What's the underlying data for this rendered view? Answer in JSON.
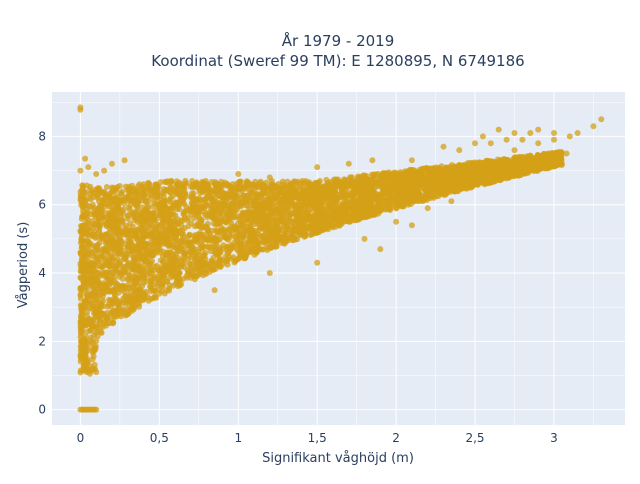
{
  "chart_data": {
    "type": "scatter",
    "title": "År 1979 - 2019",
    "subtitle": "Koordinat (Sweref 99 TM): E 1280895, N 6749186",
    "xlabel": "Signifikant våghöjd (m)",
    "ylabel": "Vågperiod (s)",
    "xlim": [
      -0.18,
      3.45
    ],
    "ylim": [
      -0.45,
      9.3
    ],
    "x_ticks": [
      0,
      0.5,
      1,
      1.5,
      2,
      2.5,
      3
    ],
    "x_tick_labels": [
      "0",
      "0,5",
      "1",
      "1,5",
      "2",
      "2,5",
      "3"
    ],
    "y_ticks": [
      0,
      2,
      4,
      6,
      8
    ],
    "y_tick_labels": [
      "0",
      "2",
      "4",
      "6",
      "8"
    ],
    "grid": true,
    "legend": "none",
    "colors": {
      "marker": "#D4A017",
      "plot_background": "#E5ECF6",
      "grid": "#ffffff",
      "text": "#2a3f5f"
    },
    "series": [
      {
        "points": [
          [
            0.0,
            8.85
          ],
          [
            0.0,
            8.78
          ],
          [
            0.0,
            0.0
          ],
          [
            0.01,
            0.0
          ],
          [
            0.02,
            0.0
          ],
          [
            0.03,
            0.0
          ],
          [
            0.04,
            0.0
          ],
          [
            0.05,
            0.0
          ],
          [
            0.06,
            0.0
          ],
          [
            0.07,
            0.0
          ],
          [
            0.08,
            0.0
          ],
          [
            0.09,
            0.0
          ],
          [
            0.1,
            0.0
          ],
          [
            0.0,
            1.6
          ],
          [
            0.02,
            1.3
          ],
          [
            0.04,
            1.1
          ],
          [
            0.06,
            1.05
          ],
          [
            0.1,
            1.1
          ],
          [
            0.03,
            7.35
          ],
          [
            0.05,
            7.1
          ],
          [
            0.15,
            7.0
          ],
          [
            0.2,
            7.2
          ],
          [
            0.28,
            7.3
          ],
          [
            0.0,
            7.0
          ],
          [
            0.1,
            6.9
          ],
          [
            0.4,
            6.6
          ],
          [
            0.6,
            6.5
          ],
          [
            0.8,
            6.6
          ],
          [
            1.0,
            6.9
          ],
          [
            1.2,
            6.8
          ],
          [
            1.5,
            7.1
          ],
          [
            1.7,
            7.2
          ],
          [
            1.85,
            7.3
          ],
          [
            2.1,
            7.3
          ],
          [
            2.3,
            7.7
          ],
          [
            2.4,
            7.6
          ],
          [
            2.5,
            7.8
          ],
          [
            2.6,
            7.8
          ],
          [
            2.7,
            7.9
          ],
          [
            2.8,
            7.9
          ],
          [
            2.85,
            8.1
          ],
          [
            2.9,
            7.8
          ],
          [
            3.0,
            7.9
          ],
          [
            3.1,
            8.0
          ],
          [
            3.15,
            8.1
          ],
          [
            2.55,
            8.0
          ],
          [
            2.65,
            8.2
          ],
          [
            2.75,
            8.1
          ],
          [
            2.9,
            8.2
          ],
          [
            3.0,
            8.1
          ],
          [
            3.25,
            8.3
          ],
          [
            3.3,
            8.5
          ],
          [
            2.88,
            7.1
          ],
          [
            3.08,
            7.5
          ],
          [
            2.5,
            7.2
          ],
          [
            2.75,
            7.6
          ],
          [
            0.85,
            3.5
          ],
          [
            1.2,
            4.0
          ],
          [
            1.5,
            4.3
          ],
          [
            1.9,
            4.7
          ],
          [
            1.8,
            5.0
          ],
          [
            2.0,
            5.5
          ],
          [
            2.1,
            5.4
          ],
          [
            2.2,
            5.9
          ],
          [
            2.35,
            6.1
          ]
        ]
      }
    ]
  }
}
